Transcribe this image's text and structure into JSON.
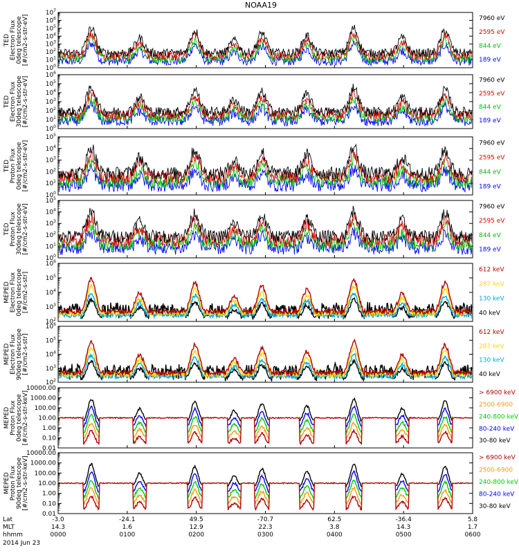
{
  "chart_data": {
    "type": "line",
    "title": "NOAA19",
    "date_label": "2014 Jun 23",
    "x_axis": {
      "rows": [
        {
          "label": "Lat",
          "values": [
            "-3.0",
            "-24.1",
            "49.5",
            "-70.7",
            "62.5",
            "-36.4",
            "5.8"
          ]
        },
        {
          "label": "MLT",
          "values": [
            "14.3",
            "1.6",
            "12.9",
            "22.3",
            "3.8",
            "14.3",
            "1.7"
          ]
        },
        {
          "label": "hhmm",
          "values": [
            "0000",
            "0100",
            "0200",
            "0300",
            "0400",
            "0500",
            "0600"
          ]
        }
      ],
      "range_hours": [
        0,
        6
      ]
    },
    "passes": [
      {
        "center": 0.48,
        "amp": 1.0
      },
      {
        "center": 1.18,
        "amp": 0.6
      },
      {
        "center": 1.98,
        "amp": 0.9
      },
      {
        "center": 2.55,
        "amp": 0.5
      },
      {
        "center": 2.95,
        "amp": 0.8
      },
      {
        "center": 3.6,
        "amp": 0.7
      },
      {
        "center": 4.28,
        "amp": 1.0
      },
      {
        "center": 4.98,
        "amp": 0.6
      },
      {
        "center": 5.6,
        "amp": 0.9
      }
    ],
    "panels": [
      {
        "ylabel": [
          "TED",
          "Electron Flux",
          "0deg telescope",
          "[#/cm2-s-str-eV]"
        ],
        "ymin_exp": 0,
        "ymax_exp": 7,
        "tick_format": "exp",
        "legend": [
          {
            "name": "7960 eV",
            "color": "#000000"
          },
          {
            "name": "2595 eV",
            "color": "#e00000"
          },
          {
            "name": "844 eV",
            "color": "#00c000"
          },
          {
            "name": "189 eV",
            "color": "#0000ff"
          }
        ]
      },
      {
        "ylabel": [
          "TED",
          "Electron Flux",
          "30deg telescope",
          "[#/cm2-s-str-eV]"
        ],
        "ymin_exp": 0,
        "ymax_exp": 6,
        "tick_format": "exp",
        "legend": [
          {
            "name": "7960 eV",
            "color": "#000000"
          },
          {
            "name": "2595 eV",
            "color": "#e00000"
          },
          {
            "name": "844 eV",
            "color": "#00c000"
          },
          {
            "name": "189 eV",
            "color": "#0000ff"
          }
        ]
      },
      {
        "ylabel": [
          "TED",
          "Proton Flux",
          "0deg telescope",
          "[#/cm2-s-str-eV]"
        ],
        "ymin_exp": 0,
        "ymax_exp": 5,
        "tick_format": "exp",
        "legend": [
          {
            "name": "7960 eV",
            "color": "#000000"
          },
          {
            "name": "2595 eV",
            "color": "#e00000"
          },
          {
            "name": "844 eV",
            "color": "#00c000"
          },
          {
            "name": "189 eV",
            "color": "#0000ff"
          }
        ]
      },
      {
        "ylabel": [
          "TED",
          "Proton Flux",
          "30deg telescope",
          "[#/cm2-s-str-eV]"
        ],
        "ymin_exp": 0,
        "ymax_exp": 5,
        "tick_format": "exp",
        "legend": [
          {
            "name": "7960 eV",
            "color": "#000000"
          },
          {
            "name": "2595 eV",
            "color": "#e00000"
          },
          {
            "name": "844 eV",
            "color": "#00c000"
          },
          {
            "name": "189 eV",
            "color": "#0000ff"
          }
        ]
      },
      {
        "ylabel": [
          "MEPED",
          "Electron Flux",
          "0deg telescope",
          "[#/cm2-s-str]"
        ],
        "ymin_exp": 2,
        "ymax_exp": 6,
        "tick_format": "exp",
        "legend": [
          {
            "name": "612 keV",
            "color": "#b40000"
          },
          {
            "name": "287 keV",
            "color": "#ffd700"
          },
          {
            "name": "130 keV",
            "color": "#00aadd"
          },
          {
            "name": "40 keV",
            "color": "#000000"
          }
        ]
      },
      {
        "ylabel": [
          "MEPED",
          "Electron Flux",
          "90deg telescope",
          "[#/cm2-s-str]"
        ],
        "ymin_exp": 2,
        "ymax_exp": 6,
        "tick_format": "exp",
        "legend": [
          {
            "name": "612 keV",
            "color": "#b40000"
          },
          {
            "name": "287 keV",
            "color": "#ffd700"
          },
          {
            "name": "130 keV",
            "color": "#00aadd"
          },
          {
            "name": "40 keV",
            "color": "#000000"
          }
        ]
      },
      {
        "ylabel": [
          "MEPED",
          "Proton Flux",
          "0deg telescope",
          "[#/cm2-s-str-keV]"
        ],
        "ymin_exp": -2,
        "ymax_exp": 4,
        "tick_format": "decimal",
        "tick_labels": [
          "0.01",
          "0.10",
          "1.00",
          "10.00",
          "100.00",
          "1000.00",
          "10000.00"
        ],
        "legend": [
          {
            "name": "> 6900 keV",
            "color": "#b40000"
          },
          {
            "name": "2500-6900",
            "color": "#ff9900"
          },
          {
            "name": "240-800 keV",
            "color": "#00cc00"
          },
          {
            "name": "80-240 keV",
            "color": "#0000ff"
          },
          {
            "name": "30-80 keV",
            "color": "#000000"
          }
        ]
      },
      {
        "ylabel": [
          "MEPED",
          "Proton Flux",
          "90deg telescope",
          "[#/cm2-s-str-keV]"
        ],
        "ymin_exp": -2,
        "ymax_exp": 4,
        "tick_format": "decimal",
        "tick_labels": [
          "0.01",
          "0.10",
          "1.00",
          "10.00",
          "100.00",
          "1000.00",
          "10000.00"
        ],
        "legend": [
          {
            "name": "> 6900 keV",
            "color": "#b40000"
          },
          {
            "name": "2500-6900",
            "color": "#ff9900"
          },
          {
            "name": "240-800 keV",
            "color": "#00cc00"
          },
          {
            "name": "80-240 keV",
            "color": "#0000ff"
          },
          {
            "name": "30-80 keV",
            "color": "#000000"
          }
        ]
      }
    ]
  }
}
